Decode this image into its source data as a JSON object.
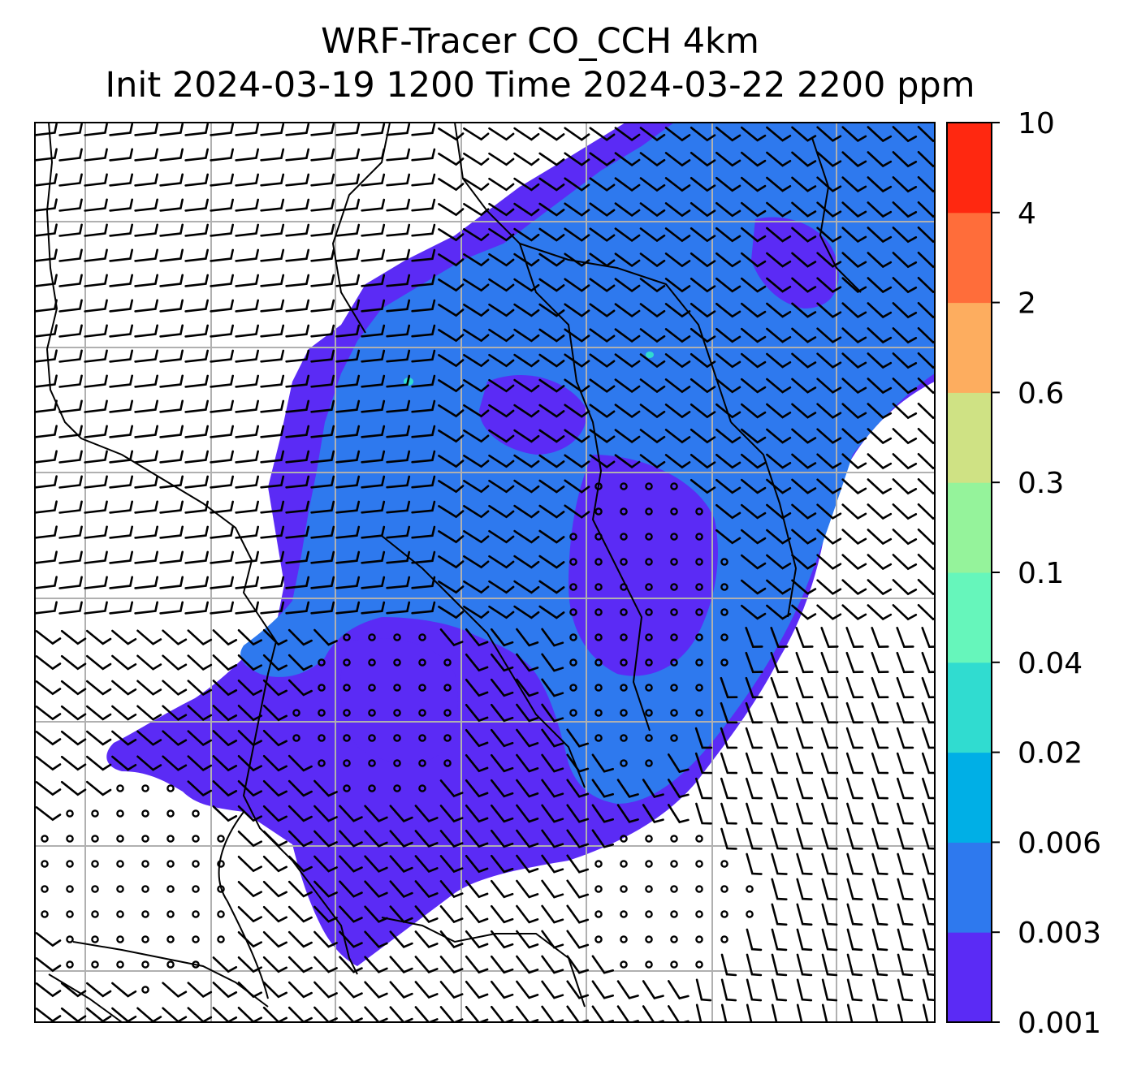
{
  "title": {
    "line1": "WRF-Tracer CO_CCH 4km",
    "line2": "Init 2024-03-19 1200 Time 2024-03-22 2200 ppm"
  },
  "colorbar": {
    "levels": [
      "0.001",
      "0.003",
      "0.006",
      "0.02",
      "0.04",
      "0.1",
      "0.3",
      "0.6",
      "2",
      "4",
      "10"
    ],
    "colors": [
      "#5b2bf5",
      "#2e79ee",
      "#00afe6",
      "#30dcd0",
      "#66f6bb",
      "#95f39b",
      "#cfe284",
      "#fdad5f",
      "#ff6d3a",
      "#ff2810"
    ]
  },
  "map": {
    "background": "#ffffff",
    "plume_low_color": "#5b2bf5",
    "plume_mid_color": "#2e79ee",
    "plume_peak_color": "#30dcd0",
    "gridline_color": "#b0b0b0",
    "coastline_color": "#000000",
    "wind_barb_color": "#000000"
  }
}
